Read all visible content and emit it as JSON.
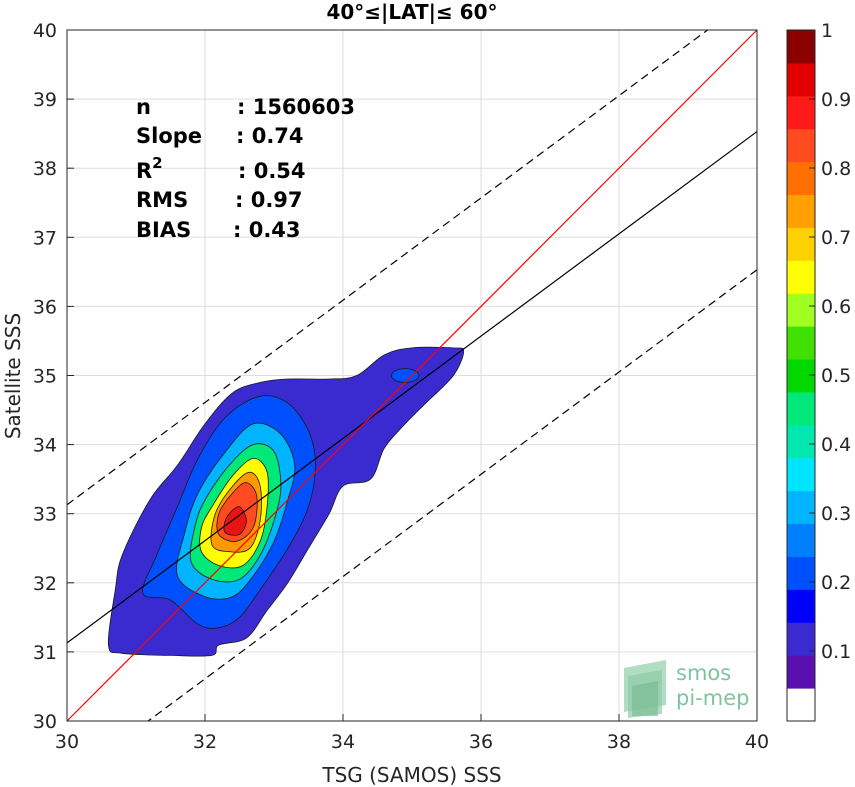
{
  "chart_data": {
    "type": "contour-density",
    "title": "40°≤|LAT|≤ 60°",
    "xlabel": "TSG (SAMOS) SSS",
    "ylabel": "Satellite SSS",
    "xlim": [
      30,
      40
    ],
    "ylim": [
      30,
      40
    ],
    "xticks": [
      "30",
      "32",
      "34",
      "36",
      "38",
      "40"
    ],
    "yticks": [
      "30",
      "31",
      "32",
      "33",
      "34",
      "35",
      "36",
      "37",
      "38",
      "39",
      "40"
    ],
    "grid": true,
    "stats": [
      {
        "label": "n",
        "value": ": 1560603"
      },
      {
        "label": "Slope",
        "value": ": 0.74"
      },
      {
        "label": "R",
        "sup": "2",
        "value": ": 0.54"
      },
      {
        "label": "RMS",
        "value": ": 0.97"
      },
      {
        "label": "BIAS",
        "value": ": 0.43"
      }
    ],
    "lines": {
      "identity": {
        "slope": 1,
        "intercept": 0,
        "color": "#ff0000"
      },
      "fit": {
        "slope": 0.74,
        "intercept": 8.93,
        "color": "#000000"
      },
      "upper_bound": {
        "slope": 0.74,
        "intercept": 10.93,
        "style": "dashed"
      },
      "lower_bound": {
        "slope": 0.74,
        "intercept": 6.93,
        "style": "dashed"
      }
    },
    "density_center": {
      "x": 32.4,
      "y": 33.0
    },
    "contour_levels": [
      {
        "level": 0.05,
        "color": "#3a2bd0",
        "points": [
          [
            30.6,
            31.1
          ],
          [
            30.8,
            30.98
          ],
          [
            31.5,
            30.95
          ],
          [
            32.1,
            30.95
          ],
          [
            32.2,
            31.1
          ],
          [
            32.6,
            31.2
          ],
          [
            32.9,
            31.6
          ],
          [
            33.2,
            32.0
          ],
          [
            33.5,
            32.5
          ],
          [
            33.8,
            33.0
          ],
          [
            34.0,
            33.4
          ],
          [
            34.4,
            33.5
          ],
          [
            34.6,
            33.95
          ],
          [
            34.9,
            34.3
          ],
          [
            35.2,
            34.6
          ],
          [
            35.6,
            35.0
          ],
          [
            35.75,
            35.35
          ],
          [
            35.6,
            35.4
          ],
          [
            35.0,
            35.4
          ],
          [
            34.6,
            35.3
          ],
          [
            34.2,
            35.0
          ],
          [
            33.8,
            34.95
          ],
          [
            33.2,
            34.95
          ],
          [
            32.8,
            34.9
          ],
          [
            32.4,
            34.75
          ],
          [
            32.0,
            34.3
          ],
          [
            31.6,
            33.7
          ],
          [
            31.2,
            33.2
          ],
          [
            30.8,
            32.4
          ],
          [
            30.7,
            31.9
          ]
        ]
      },
      {
        "level": 0.2,
        "color": "#0050ff",
        "points": [
          [
            31.1,
            31.85
          ],
          [
            31.5,
            31.75
          ],
          [
            31.9,
            31.4
          ],
          [
            32.2,
            31.35
          ],
          [
            32.5,
            31.5
          ],
          [
            32.8,
            31.9
          ],
          [
            33.2,
            32.5
          ],
          [
            33.5,
            33.1
          ],
          [
            33.6,
            33.7
          ],
          [
            33.5,
            34.2
          ],
          [
            33.2,
            34.6
          ],
          [
            32.8,
            34.7
          ],
          [
            32.3,
            34.4
          ],
          [
            31.9,
            33.8
          ],
          [
            31.6,
            33.1
          ],
          [
            31.3,
            32.4
          ]
        ]
      },
      {
        "level": 0.3,
        "color": "#00b4ff",
        "points": [
          [
            31.6,
            32.1
          ],
          [
            32.0,
            31.8
          ],
          [
            32.4,
            31.8
          ],
          [
            32.7,
            32.1
          ],
          [
            33.0,
            32.6
          ],
          [
            33.2,
            33.2
          ],
          [
            33.3,
            33.7
          ],
          [
            33.1,
            34.15
          ],
          [
            32.7,
            34.3
          ],
          [
            32.3,
            33.9
          ],
          [
            31.9,
            33.3
          ],
          [
            31.7,
            32.7
          ]
        ]
      },
      {
        "level": 0.45,
        "color": "#00e87a",
        "points": [
          [
            31.8,
            32.3
          ],
          [
            32.1,
            32.05
          ],
          [
            32.5,
            32.05
          ],
          [
            32.8,
            32.4
          ],
          [
            33.0,
            32.9
          ],
          [
            33.1,
            33.4
          ],
          [
            33.0,
            33.9
          ],
          [
            32.7,
            34.0
          ],
          [
            32.35,
            33.7
          ],
          [
            32.0,
            33.2
          ],
          [
            31.85,
            32.8
          ]
        ]
      },
      {
        "level": 0.6,
        "color": "#ffff00",
        "points": [
          [
            31.95,
            32.45
          ],
          [
            32.2,
            32.25
          ],
          [
            32.55,
            32.25
          ],
          [
            32.8,
            32.6
          ],
          [
            32.9,
            33.1
          ],
          [
            32.9,
            33.6
          ],
          [
            32.7,
            33.8
          ],
          [
            32.4,
            33.55
          ],
          [
            32.1,
            33.1
          ],
          [
            31.95,
            32.8
          ]
        ]
      },
      {
        "level": 0.7,
        "color": "#ff9900",
        "points": [
          [
            32.1,
            32.55
          ],
          [
            32.35,
            32.45
          ],
          [
            32.65,
            32.5
          ],
          [
            32.8,
            32.9
          ],
          [
            32.8,
            33.4
          ],
          [
            32.65,
            33.6
          ],
          [
            32.4,
            33.4
          ],
          [
            32.15,
            33.0
          ]
        ]
      },
      {
        "level": 0.8,
        "color": "#ff4b1f",
        "points": [
          [
            32.2,
            32.7
          ],
          [
            32.45,
            32.6
          ],
          [
            32.7,
            32.8
          ],
          [
            32.75,
            33.25
          ],
          [
            32.6,
            33.45
          ],
          [
            32.4,
            33.3
          ],
          [
            32.2,
            33.0
          ]
        ]
      },
      {
        "level": 0.85,
        "color": "#e81414",
        "points": [
          [
            32.3,
            32.72
          ],
          [
            32.5,
            32.7
          ],
          [
            32.6,
            32.9
          ],
          [
            32.5,
            33.1
          ],
          [
            32.35,
            33.0
          ],
          [
            32.28,
            32.85
          ]
        ]
      }
    ],
    "small_contour": {
      "center": [
        34.9,
        35.0
      ],
      "rx": 0.2,
      "ry": 0.1,
      "color": "#0050ff"
    },
    "colorbar": {
      "range": [
        0,
        1
      ],
      "ticks": [
        "0.1",
        "0.2",
        "0.3",
        "0.4",
        "0.5",
        "0.6",
        "0.7",
        "0.8",
        "0.9",
        "1"
      ],
      "colors": [
        "#ffffff",
        "#5a0fb0",
        "#3a2bd0",
        "#0000ff",
        "#0050ff",
        "#007fff",
        "#00b4ff",
        "#00e5ff",
        "#00e8b0",
        "#00e87a",
        "#00d800",
        "#40e000",
        "#a0ff20",
        "#ffff00",
        "#ffd000",
        "#ffa000",
        "#ff7000",
        "#ff4b1f",
        "#ff1a1a",
        "#e00000",
        "#8b0000"
      ]
    },
    "logo": {
      "line1": "smos",
      "line2": "pi-mep"
    }
  }
}
